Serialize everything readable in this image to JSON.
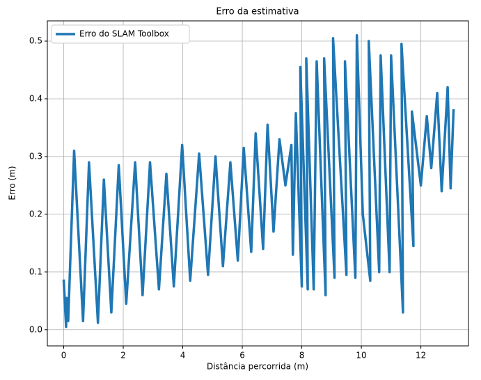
{
  "chart_data": {
    "type": "line",
    "title": "Erro da estimativa",
    "x_label": "Distância percorrida (m)",
    "y_label": "Erro (m)",
    "x": [
      0,
      0.08,
      0.1,
      0.15,
      0.35,
      0.65,
      0.85,
      1.15,
      1.35,
      1.6,
      1.85,
      2.1,
      2.4,
      2.65,
      2.9,
      3.2,
      3.45,
      3.7,
      3.98,
      4.25,
      4.55,
      4.85,
      5.1,
      5.35,
      5.6,
      5.85,
      6.05,
      6.3,
      6.45,
      6.7,
      6.85,
      7.05,
      7.25,
      7.45,
      7.65,
      7.7,
      7.8,
      8.0,
      7.95,
      8.2,
      8.15,
      8.4,
      8.5,
      8.8,
      8.75,
      9.1,
      9.05,
      9.5,
      9.45,
      9.8,
      9.85,
      10.05,
      10.3,
      10.25,
      10.6,
      10.65,
      10.95,
      11.0,
      11.4,
      11.35,
      11.75,
      11.7,
      12.0,
      12.2,
      12.35,
      12.55,
      12.7,
      12.9,
      13.0,
      13.1
    ],
    "series": [
      {
        "name": "Erro do SLAM Toolbox",
        "color": "#1f77b4",
        "values": [
          0.087,
          0.005,
          0.055,
          0.015,
          0.31,
          0.015,
          0.29,
          0.012,
          0.26,
          0.03,
          0.285,
          0.045,
          0.29,
          0.06,
          0.29,
          0.07,
          0.27,
          0.075,
          0.32,
          0.085,
          0.305,
          0.095,
          0.3,
          0.11,
          0.29,
          0.12,
          0.315,
          0.135,
          0.34,
          0.14,
          0.355,
          0.17,
          0.33,
          0.25,
          0.32,
          0.13,
          0.375,
          0.075,
          0.455,
          0.07,
          0.47,
          0.07,
          0.465,
          0.06,
          0.47,
          0.09,
          0.505,
          0.095,
          0.465,
          0.09,
          0.51,
          0.2,
          0.085,
          0.5,
          0.1,
          0.475,
          0.1,
          0.475,
          0.03,
          0.495,
          0.145,
          0.378,
          0.25,
          0.37,
          0.28,
          0.41,
          0.24,
          0.42,
          0.245,
          0.382
        ]
      }
    ],
    "xlim": [
      -0.55,
      13.6
    ],
    "ylim": [
      -0.028,
      0.535
    ],
    "xticks": [
      0,
      2,
      4,
      6,
      8,
      10,
      12
    ],
    "yticks": [
      {
        "value": 0,
        "label": "0.0"
      },
      0.1,
      0.2,
      0.3,
      0.4,
      0.5
    ],
    "grid": true,
    "legend": "upper left"
  }
}
